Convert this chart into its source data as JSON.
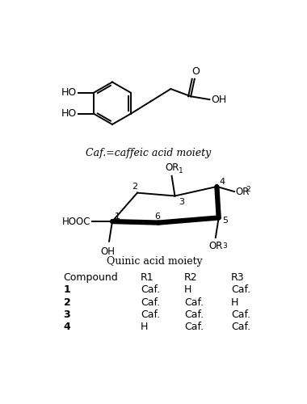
{
  "bg_color": "#ffffff",
  "caffeic_label": "Caf.=caffeic acid moiety",
  "quinic_label": "Quinic acid moiety",
  "table_header": [
    "Compound",
    "R1",
    "R2",
    "R3"
  ],
  "table_rows": [
    [
      "1",
      "Caf.",
      "H",
      "Caf."
    ],
    [
      "2",
      "Caf.",
      "Caf.",
      "H"
    ],
    [
      "3",
      "Caf.",
      "Caf.",
      "Caf."
    ],
    [
      "4",
      "H",
      "Caf.",
      "Caf."
    ]
  ]
}
